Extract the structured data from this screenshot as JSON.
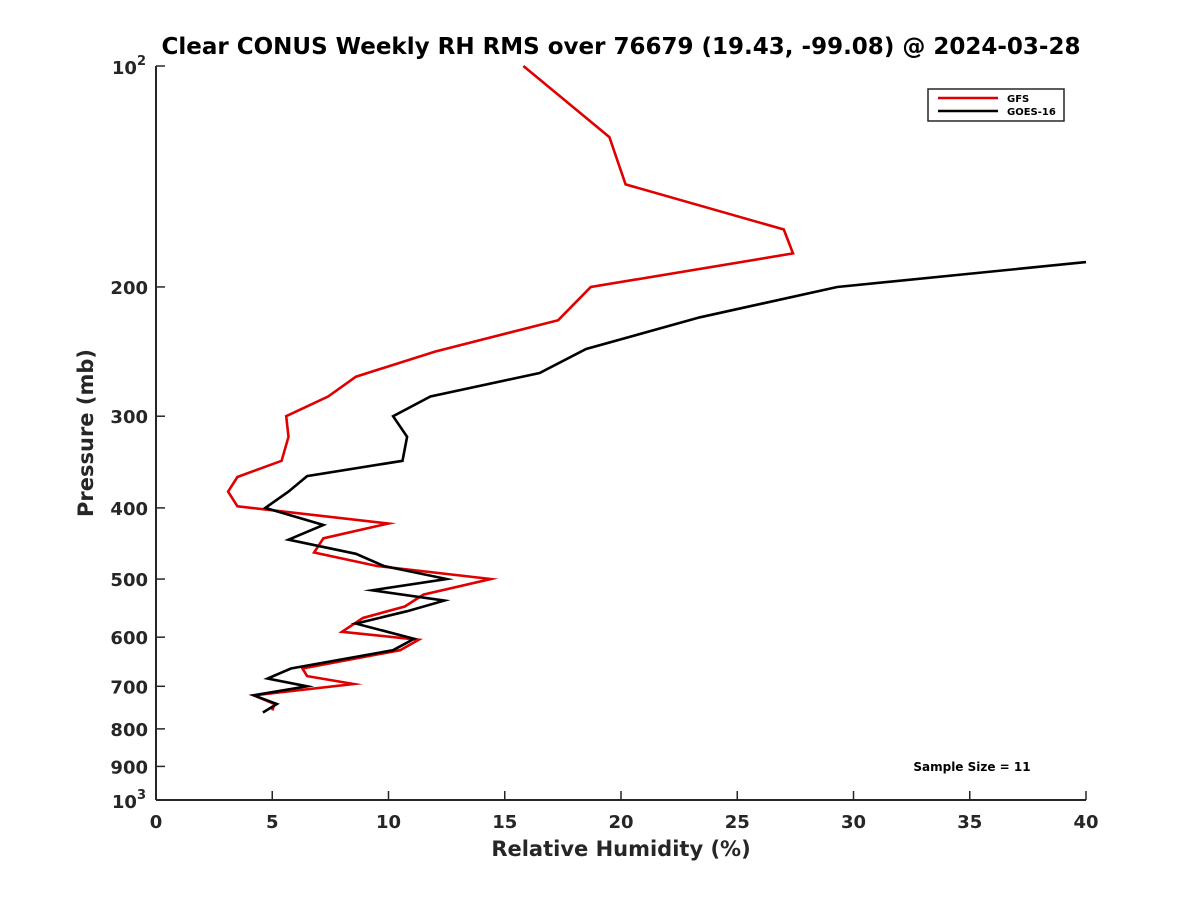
{
  "chart_data": {
    "type": "line",
    "title": "Clear CONUS Weekly RH RMS over 76679 (19.43, -99.08) @ 2024-03-28",
    "xlabel": "Relative Humidity (%)",
    "ylabel": "Pressure (mb)",
    "xlim": [
      0,
      40
    ],
    "ylim": [
      100,
      1000
    ],
    "y_scale": "log",
    "y_reversed": true,
    "x_ticks": [
      "0",
      "5",
      "10",
      "15",
      "20",
      "25",
      "30",
      "35",
      "40"
    ],
    "y_ticks": [
      {
        "value": 100,
        "base": "10",
        "exp": "2"
      },
      {
        "value": 200,
        "label": "200"
      },
      {
        "value": 300,
        "label": "300"
      },
      {
        "value": 400,
        "label": "400"
      },
      {
        "value": 500,
        "label": "500"
      },
      {
        "value": 600,
        "label": "600"
      },
      {
        "value": 700,
        "label": "700"
      },
      {
        "value": 800,
        "label": "800"
      },
      {
        "value": 900,
        "label": "900"
      },
      {
        "value": 1000,
        "base": "10",
        "exp": "3"
      }
    ],
    "legend_position": "top-right",
    "annotation": "Sample Size = 11",
    "series": [
      {
        "name": "GFS",
        "color": "#e00000",
        "points": [
          [
            15.8,
            100
          ],
          [
            19.5,
            125
          ],
          [
            20.2,
            145
          ],
          [
            27.0,
            167
          ],
          [
            27.4,
            180
          ],
          [
            18.7,
            200
          ],
          [
            17.3,
            222
          ],
          [
            12.0,
            245
          ],
          [
            8.6,
            265
          ],
          [
            7.4,
            282
          ],
          [
            5.6,
            300
          ],
          [
            5.7,
            320
          ],
          [
            5.4,
            345
          ],
          [
            3.5,
            363
          ],
          [
            3.1,
            380
          ],
          [
            3.5,
            398
          ],
          [
            10.0,
            420
          ],
          [
            7.2,
            440
          ],
          [
            6.8,
            460
          ],
          [
            9.5,
            480
          ],
          [
            14.4,
            500
          ],
          [
            11.5,
            525
          ],
          [
            10.7,
            545
          ],
          [
            8.9,
            565
          ],
          [
            8.0,
            590
          ],
          [
            11.3,
            605
          ],
          [
            10.5,
            625
          ],
          [
            6.3,
            662
          ],
          [
            6.5,
            678
          ],
          [
            8.5,
            695
          ],
          [
            4.2,
            720
          ],
          [
            5.1,
            740
          ],
          [
            5.0,
            755
          ]
        ]
      },
      {
        "name": "GOES-16",
        "color": "#000000",
        "points": [
          [
            40.0,
            185
          ],
          [
            29.3,
            200
          ],
          [
            23.4,
            220
          ],
          [
            18.5,
            243
          ],
          [
            16.5,
            262
          ],
          [
            11.8,
            282
          ],
          [
            10.2,
            300
          ],
          [
            10.8,
            320
          ],
          [
            10.6,
            345
          ],
          [
            6.5,
            362
          ],
          [
            5.7,
            380
          ],
          [
            4.7,
            400
          ],
          [
            7.2,
            422
          ],
          [
            5.7,
            442
          ],
          [
            8.6,
            462
          ],
          [
            9.8,
            480
          ],
          [
            12.5,
            500
          ],
          [
            9.3,
            518
          ],
          [
            12.4,
            535
          ],
          [
            10.8,
            553
          ],
          [
            8.6,
            575
          ],
          [
            11.1,
            603
          ],
          [
            10.2,
            625
          ],
          [
            5.8,
            662
          ],
          [
            4.8,
            683
          ],
          [
            6.5,
            700
          ],
          [
            4.2,
            720
          ],
          [
            5.2,
            740
          ],
          [
            4.6,
            760
          ]
        ]
      }
    ]
  }
}
